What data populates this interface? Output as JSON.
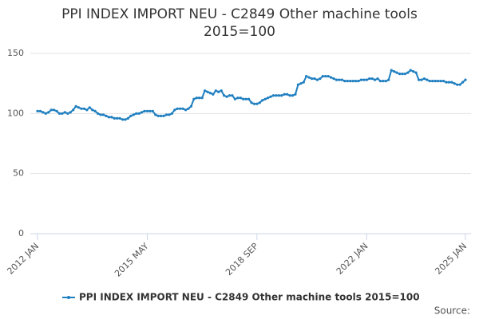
{
  "chart_data": {
    "type": "line",
    "title": [
      "PPI INDEX IMPORT NEU - C2849 Other machine tools",
      "2015=100"
    ],
    "categories": [
      "2012 JAN",
      null,
      null,
      null,
      null,
      null,
      null,
      null,
      null,
      null,
      null,
      null,
      null,
      null,
      null,
      null,
      null,
      null,
      null,
      null,
      null,
      null,
      null,
      null,
      null,
      null,
      null,
      null,
      null,
      null,
      null,
      null,
      null,
      null,
      null,
      null,
      null,
      null,
      null,
      null,
      "2015 MAY",
      null,
      null,
      null,
      null,
      null,
      null,
      null,
      null,
      null,
      null,
      null,
      null,
      null,
      null,
      null,
      null,
      null,
      null,
      null,
      null,
      null,
      null,
      null,
      null,
      null,
      null,
      null,
      null,
      null,
      null,
      null,
      null,
      null,
      null,
      null,
      null,
      null,
      null,
      null,
      "2018 SEP",
      null,
      null,
      null,
      null,
      null,
      null,
      null,
      null,
      null,
      null,
      null,
      null,
      null,
      null,
      null,
      null,
      null,
      null,
      null,
      null,
      null,
      null,
      null,
      null,
      null,
      null,
      null,
      null,
      null,
      null,
      null,
      null,
      null,
      null,
      null,
      null,
      null,
      null,
      null,
      "2022 JAN",
      null,
      null,
      null,
      null,
      null,
      null,
      null,
      null,
      null,
      null,
      null,
      null,
      null,
      null,
      null,
      null,
      null,
      null,
      null,
      null,
      null,
      null,
      null,
      null,
      null,
      null,
      null,
      null,
      null,
      null,
      null,
      null,
      null,
      null,
      null,
      "2025 JAN"
    ],
    "series": [
      {
        "name": "PPI INDEX IMPORT NEU - C2849 Other machine tools 2015=100",
        "color": "#1f7fc0",
        "values": [
          102,
          102,
          101,
          100,
          101,
          103,
          103,
          102,
          100,
          100,
          101,
          100,
          101,
          103,
          106,
          105,
          104,
          104,
          103,
          105,
          103,
          102,
          100,
          99,
          99,
          98,
          97,
          97,
          96,
          96,
          96,
          95,
          95,
          96,
          98,
          99,
          100,
          100,
          101,
          102,
          102,
          102,
          102,
          99,
          98,
          98,
          98,
          99,
          99,
          100,
          103,
          104,
          104,
          104,
          103,
          104,
          106,
          112,
          113,
          113,
          113,
          119,
          118,
          117,
          116,
          119,
          118,
          119,
          115,
          114,
          115,
          115,
          112,
          113,
          113,
          112,
          112,
          112,
          109,
          108,
          108,
          109,
          111,
          112,
          113,
          114,
          115,
          115,
          115,
          115,
          116,
          116,
          115,
          115,
          116,
          124,
          125,
          126,
          131,
          130,
          129,
          129,
          128,
          129,
          131,
          131,
          131,
          130,
          129,
          128,
          128,
          128,
          127,
          127,
          127,
          127,
          127,
          127,
          128,
          128,
          128,
          129,
          129,
          128,
          129,
          127,
          127,
          127,
          128,
          136,
          135,
          134,
          133,
          133,
          133,
          134,
          136,
          135,
          134,
          128,
          128,
          129,
          128,
          127,
          127,
          127,
          127,
          127,
          127,
          126,
          126,
          126,
          125,
          124,
          124,
          126,
          128
        ]
      }
    ],
    "ylim": [
      0,
      150
    ],
    "yticks": [
      0,
      50,
      100,
      150
    ],
    "grid": true,
    "legend": "bottom",
    "source": "Source:"
  }
}
